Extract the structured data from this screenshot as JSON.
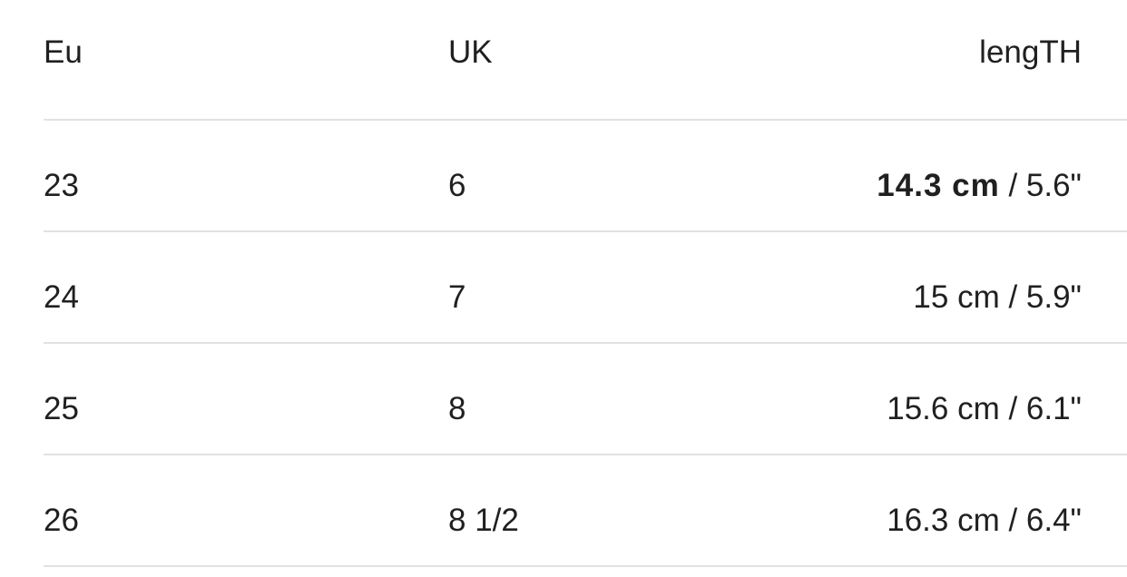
{
  "table": {
    "headers": [
      "Eu",
      "UK",
      "lengTH"
    ],
    "rows": [
      {
        "eu": "23",
        "uk": "6",
        "length_cm": "14.3 cm",
        "length_in": " / 5.6\"",
        "highlighted": true
      },
      {
        "eu": "24",
        "uk": "7",
        "length_cm": "15 cm",
        "length_in": " / 5.9\"",
        "highlighted": false
      },
      {
        "eu": "25",
        "uk": "8",
        "length_cm": "15.6 cm",
        "length_in": " / 6.1\"",
        "highlighted": false
      },
      {
        "eu": "26",
        "uk": "8 1/2",
        "length_cm": "16.3 cm",
        "length_in": " / 6.4\"",
        "highlighted": false
      }
    ]
  }
}
